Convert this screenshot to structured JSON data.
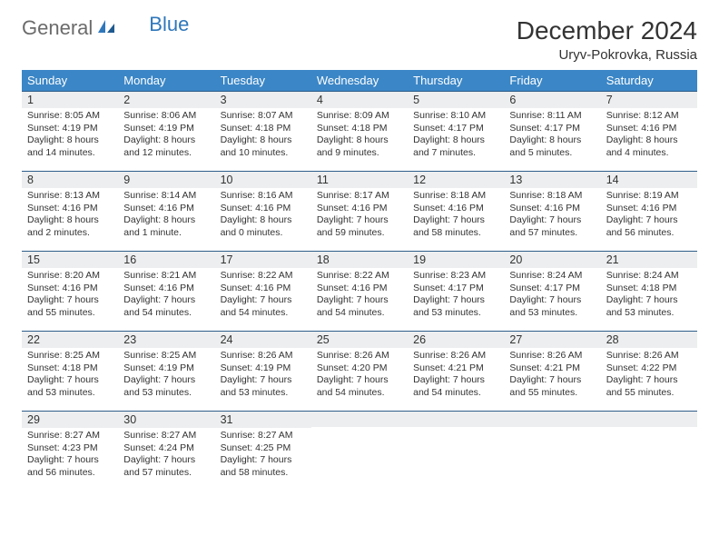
{
  "brand": {
    "text1": "General",
    "text2": "Blue"
  },
  "title": "December 2024",
  "location": "Uryv-Pokrovka, Russia",
  "colors": {
    "header_bg": "#3b86c6",
    "header_rule": "#2f5f8a",
    "daynum_bg": "#eceeef",
    "page_bg": "#ffffff",
    "text": "#333333",
    "logo_gray": "#6b6b6b",
    "logo_blue": "#2f77bb"
  },
  "weekdays": [
    "Sunday",
    "Monday",
    "Tuesday",
    "Wednesday",
    "Thursday",
    "Friday",
    "Saturday"
  ],
  "weeks": [
    [
      {
        "n": "1",
        "sr": "Sunrise: 8:05 AM",
        "ss": "Sunset: 4:19 PM",
        "dl": "Daylight: 8 hours and 14 minutes."
      },
      {
        "n": "2",
        "sr": "Sunrise: 8:06 AM",
        "ss": "Sunset: 4:19 PM",
        "dl": "Daylight: 8 hours and 12 minutes."
      },
      {
        "n": "3",
        "sr": "Sunrise: 8:07 AM",
        "ss": "Sunset: 4:18 PM",
        "dl": "Daylight: 8 hours and 10 minutes."
      },
      {
        "n": "4",
        "sr": "Sunrise: 8:09 AM",
        "ss": "Sunset: 4:18 PM",
        "dl": "Daylight: 8 hours and 9 minutes."
      },
      {
        "n": "5",
        "sr": "Sunrise: 8:10 AM",
        "ss": "Sunset: 4:17 PM",
        "dl": "Daylight: 8 hours and 7 minutes."
      },
      {
        "n": "6",
        "sr": "Sunrise: 8:11 AM",
        "ss": "Sunset: 4:17 PM",
        "dl": "Daylight: 8 hours and 5 minutes."
      },
      {
        "n": "7",
        "sr": "Sunrise: 8:12 AM",
        "ss": "Sunset: 4:16 PM",
        "dl": "Daylight: 8 hours and 4 minutes."
      }
    ],
    [
      {
        "n": "8",
        "sr": "Sunrise: 8:13 AM",
        "ss": "Sunset: 4:16 PM",
        "dl": "Daylight: 8 hours and 2 minutes."
      },
      {
        "n": "9",
        "sr": "Sunrise: 8:14 AM",
        "ss": "Sunset: 4:16 PM",
        "dl": "Daylight: 8 hours and 1 minute."
      },
      {
        "n": "10",
        "sr": "Sunrise: 8:16 AM",
        "ss": "Sunset: 4:16 PM",
        "dl": "Daylight: 8 hours and 0 minutes."
      },
      {
        "n": "11",
        "sr": "Sunrise: 8:17 AM",
        "ss": "Sunset: 4:16 PM",
        "dl": "Daylight: 7 hours and 59 minutes."
      },
      {
        "n": "12",
        "sr": "Sunrise: 8:18 AM",
        "ss": "Sunset: 4:16 PM",
        "dl": "Daylight: 7 hours and 58 minutes."
      },
      {
        "n": "13",
        "sr": "Sunrise: 8:18 AM",
        "ss": "Sunset: 4:16 PM",
        "dl": "Daylight: 7 hours and 57 minutes."
      },
      {
        "n": "14",
        "sr": "Sunrise: 8:19 AM",
        "ss": "Sunset: 4:16 PM",
        "dl": "Daylight: 7 hours and 56 minutes."
      }
    ],
    [
      {
        "n": "15",
        "sr": "Sunrise: 8:20 AM",
        "ss": "Sunset: 4:16 PM",
        "dl": "Daylight: 7 hours and 55 minutes."
      },
      {
        "n": "16",
        "sr": "Sunrise: 8:21 AM",
        "ss": "Sunset: 4:16 PM",
        "dl": "Daylight: 7 hours and 54 minutes."
      },
      {
        "n": "17",
        "sr": "Sunrise: 8:22 AM",
        "ss": "Sunset: 4:16 PM",
        "dl": "Daylight: 7 hours and 54 minutes."
      },
      {
        "n": "18",
        "sr": "Sunrise: 8:22 AM",
        "ss": "Sunset: 4:16 PM",
        "dl": "Daylight: 7 hours and 54 minutes."
      },
      {
        "n": "19",
        "sr": "Sunrise: 8:23 AM",
        "ss": "Sunset: 4:17 PM",
        "dl": "Daylight: 7 hours and 53 minutes."
      },
      {
        "n": "20",
        "sr": "Sunrise: 8:24 AM",
        "ss": "Sunset: 4:17 PM",
        "dl": "Daylight: 7 hours and 53 minutes."
      },
      {
        "n": "21",
        "sr": "Sunrise: 8:24 AM",
        "ss": "Sunset: 4:18 PM",
        "dl": "Daylight: 7 hours and 53 minutes."
      }
    ],
    [
      {
        "n": "22",
        "sr": "Sunrise: 8:25 AM",
        "ss": "Sunset: 4:18 PM",
        "dl": "Daylight: 7 hours and 53 minutes."
      },
      {
        "n": "23",
        "sr": "Sunrise: 8:25 AM",
        "ss": "Sunset: 4:19 PM",
        "dl": "Daylight: 7 hours and 53 minutes."
      },
      {
        "n": "24",
        "sr": "Sunrise: 8:26 AM",
        "ss": "Sunset: 4:19 PM",
        "dl": "Daylight: 7 hours and 53 minutes."
      },
      {
        "n": "25",
        "sr": "Sunrise: 8:26 AM",
        "ss": "Sunset: 4:20 PM",
        "dl": "Daylight: 7 hours and 54 minutes."
      },
      {
        "n": "26",
        "sr": "Sunrise: 8:26 AM",
        "ss": "Sunset: 4:21 PM",
        "dl": "Daylight: 7 hours and 54 minutes."
      },
      {
        "n": "27",
        "sr": "Sunrise: 8:26 AM",
        "ss": "Sunset: 4:21 PM",
        "dl": "Daylight: 7 hours and 55 minutes."
      },
      {
        "n": "28",
        "sr": "Sunrise: 8:26 AM",
        "ss": "Sunset: 4:22 PM",
        "dl": "Daylight: 7 hours and 55 minutes."
      }
    ],
    [
      {
        "n": "29",
        "sr": "Sunrise: 8:27 AM",
        "ss": "Sunset: 4:23 PM",
        "dl": "Daylight: 7 hours and 56 minutes."
      },
      {
        "n": "30",
        "sr": "Sunrise: 8:27 AM",
        "ss": "Sunset: 4:24 PM",
        "dl": "Daylight: 7 hours and 57 minutes."
      },
      {
        "n": "31",
        "sr": "Sunrise: 8:27 AM",
        "ss": "Sunset: 4:25 PM",
        "dl": "Daylight: 7 hours and 58 minutes."
      },
      null,
      null,
      null,
      null
    ]
  ]
}
